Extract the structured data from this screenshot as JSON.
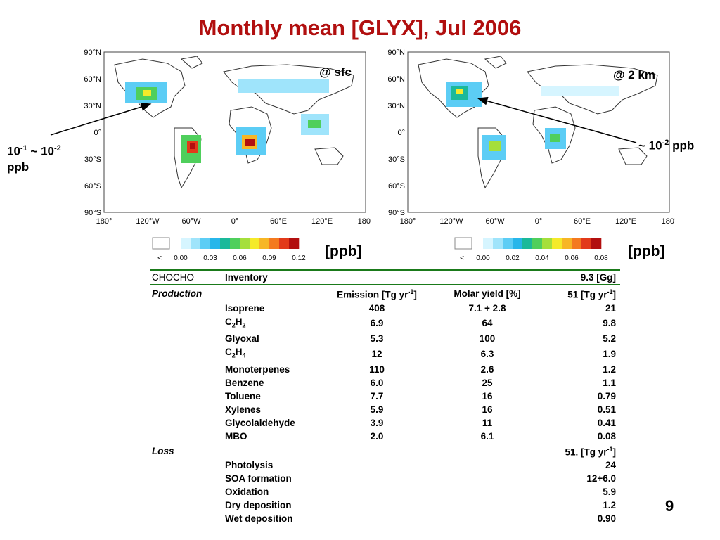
{
  "title": "Monthly mean [GLYX], Jul 2006",
  "maps": [
    {
      "label": "@ sfc",
      "lat_labels": [
        "90°N",
        "60°N",
        "30°N",
        "0°",
        "30°S",
        "60°S",
        "90°S"
      ],
      "lon_labels": [
        "180°",
        "120°W",
        "60°W",
        "0°",
        "60°E",
        "120°E",
        "180°"
      ],
      "colorbar_ticks": [
        "<",
        "0.00",
        "0.03",
        "0.06",
        "0.09",
        "0.12"
      ],
      "unit": "[ppb]"
    },
    {
      "label": "@ 2 km",
      "lat_labels": [
        "90°N",
        "60°N",
        "30°N",
        "0°",
        "30°S",
        "60°S",
        "90°S"
      ],
      "lon_labels": [
        "180°",
        "120°W",
        "60°W",
        "0°",
        "60°E",
        "120°E",
        "180°"
      ],
      "colorbar_ticks": [
        "<",
        "0.00",
        "0.02",
        "0.04",
        "0.06",
        "0.08"
      ],
      "unit": "[ppb]"
    }
  ],
  "annotations": {
    "left": {
      "line1": "10",
      "sup1": "-1",
      "mid": " ~ 10",
      "sup2": "-2",
      "line2": "ppb"
    },
    "right": {
      "pre": "~ 10",
      "sup": "-2",
      "post": " ppb"
    }
  },
  "colors": {
    "title": "#b10f0f",
    "rule": "#1a7a1a",
    "scale": [
      "#ffffff",
      "#d6f5ff",
      "#9fe4fb",
      "#5ccdf5",
      "#27b6ea",
      "#1ab99a",
      "#4fcf5c",
      "#a5df3b",
      "#f5ea2a",
      "#f7b625",
      "#f47a1f",
      "#e23a1a",
      "#b20f0f"
    ]
  },
  "table": {
    "header": {
      "col1": "CHOCHO",
      "col2": "Inventory",
      "col5": "9.3 [Gg]"
    },
    "production": {
      "label": "Production",
      "col3_head": "Emission [Tg yr",
      "col3_sup": "-1",
      "col3_tail": "]",
      "col4_head": "Molar yield [%]",
      "col5_head": "51  [Tg yr",
      "col5_sup": "-1",
      "col5_tail": "]",
      "rows": [
        {
          "name": "Isoprene",
          "emission": "408",
          "yield": "7.1 + 2.8",
          "value": "21"
        },
        {
          "name_base": "C",
          "name_sub1": "2",
          "name_mid": "H",
          "name_sub2": "2",
          "emission": "6.9",
          "yield": "64",
          "value": "9.8"
        },
        {
          "name": "Glyoxal",
          "emission": "5.3",
          "yield": "100",
          "value": "5.2"
        },
        {
          "name_base": "C",
          "name_sub1": "2",
          "name_mid": "H",
          "name_sub2": "4",
          "emission": "12",
          "yield": "6.3",
          "value": "1.9"
        },
        {
          "name": "Monoterpenes",
          "emission": "110",
          "yield": "2.6",
          "value": "1.2"
        },
        {
          "name": "Benzene",
          "emission": "6.0",
          "yield": "25",
          "value": "1.1"
        },
        {
          "name": "Toluene",
          "emission": "7.7",
          "yield": "16",
          "value": "0.79"
        },
        {
          "name": "Xylenes",
          "emission": "5.9",
          "yield": "16",
          "value": "0.51"
        },
        {
          "name": "Glycolaldehyde",
          "emission": "3.9",
          "yield": "11",
          "value": "0.41"
        },
        {
          "name": "MBO",
          "emission": "2.0",
          "yield": "6.1",
          "value": "0.08"
        }
      ]
    },
    "loss": {
      "label": "Loss",
      "total_head": "51. [Tg yr",
      "total_sup": "-1",
      "total_tail": "]",
      "rows": [
        {
          "name": "Photolysis",
          "value": "24"
        },
        {
          "name": "SOA formation",
          "value": "12+6.0"
        },
        {
          "name": "Oxidation",
          "value": "5.9"
        },
        {
          "name": "Dry deposition",
          "value": "1.2"
        },
        {
          "name": "Wet deposition",
          "value": "0.90"
        }
      ]
    }
  },
  "page_number": "9"
}
